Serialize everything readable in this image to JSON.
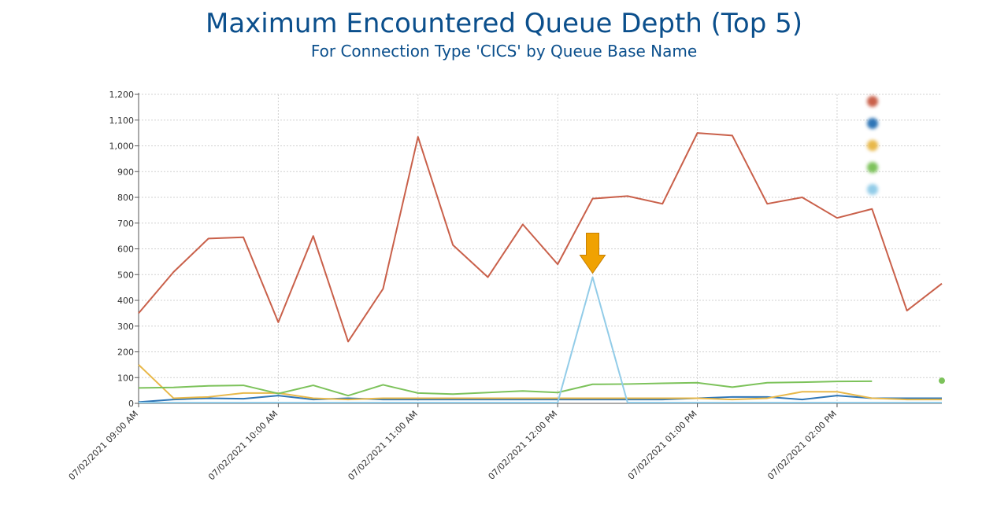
{
  "header": {
    "title": "Maximum Encountered Queue Depth (Top 5)",
    "subtitle": "For Connection Type 'CICS' by Queue Base Name"
  },
  "chart_data": {
    "type": "line",
    "title": "Maximum Encountered Queue Depth (Top 5)",
    "subtitle": "For Connection Type 'CICS' by Queue Base Name",
    "xlabel": "",
    "ylabel": "",
    "ylim": [
      0,
      1200
    ],
    "yticks": [
      "0",
      "100",
      "200",
      "300",
      "400",
      "500",
      "600",
      "700",
      "800",
      "900",
      "1,000",
      "1,100",
      "1,200"
    ],
    "xticks": [
      {
        "label": "07/02/2021 09:00 AM",
        "index": 0
      },
      {
        "label": "07/02/2021 10:00 AM",
        "index": 4
      },
      {
        "label": "07/02/2021 11:00 AM",
        "index": 8
      },
      {
        "label": "07/02/2021 12:00 PM",
        "index": 12
      },
      {
        "label": "07/02/2021 01:00 PM",
        "index": 16
      },
      {
        "label": "07/02/2021 02:00 PM",
        "index": 20
      }
    ],
    "grid": true,
    "legend_position": "top-right",
    "annotation": {
      "type": "arrow",
      "series_index": 4,
      "point_index": 13,
      "color": "#f0a202"
    },
    "series": [
      {
        "color": "#c9604a",
        "values": [
          350,
          510,
          640,
          645,
          315,
          650,
          240,
          445,
          1035,
          615,
          490,
          695,
          540,
          795,
          805,
          775,
          1050,
          1040,
          775,
          800,
          720,
          755,
          360,
          465
        ]
      },
      {
        "color": "#2e75b6",
        "values": [
          5,
          15,
          20,
          18,
          30,
          15,
          20,
          15,
          15,
          15,
          15,
          15,
          15,
          15,
          15,
          15,
          20,
          25,
          25,
          15,
          30,
          20,
          20,
          20
        ]
      },
      {
        "color": "#e8b84a",
        "values": [
          150,
          20,
          25,
          40,
          40,
          20,
          15,
          20,
          20,
          20,
          20,
          20,
          20,
          20,
          20,
          20,
          20,
          15,
          20,
          45,
          45,
          20,
          15,
          15
        ]
      },
      {
        "color": "#7cc25a",
        "values": [
          60,
          62,
          68,
          70,
          38,
          70,
          30,
          72,
          40,
          36,
          42,
          48,
          42,
          74,
          75,
          78,
          80,
          63,
          80,
          82,
          85,
          86,
          null,
          88
        ]
      },
      {
        "color": "#92cce8",
        "values": [
          3,
          3,
          3,
          3,
          3,
          3,
          3,
          3,
          3,
          3,
          3,
          3,
          3,
          490,
          3,
          3,
          3,
          3,
          3,
          3,
          3,
          3,
          3,
          3
        ]
      }
    ],
    "legend": [
      {
        "color": "#c9604a",
        "name": ""
      },
      {
        "color": "#2e75b6",
        "name": ""
      },
      {
        "color": "#e8b84a",
        "name": ""
      },
      {
        "color": "#7cc25a",
        "name": ""
      },
      {
        "color": "#92cce8",
        "name": ""
      }
    ]
  }
}
